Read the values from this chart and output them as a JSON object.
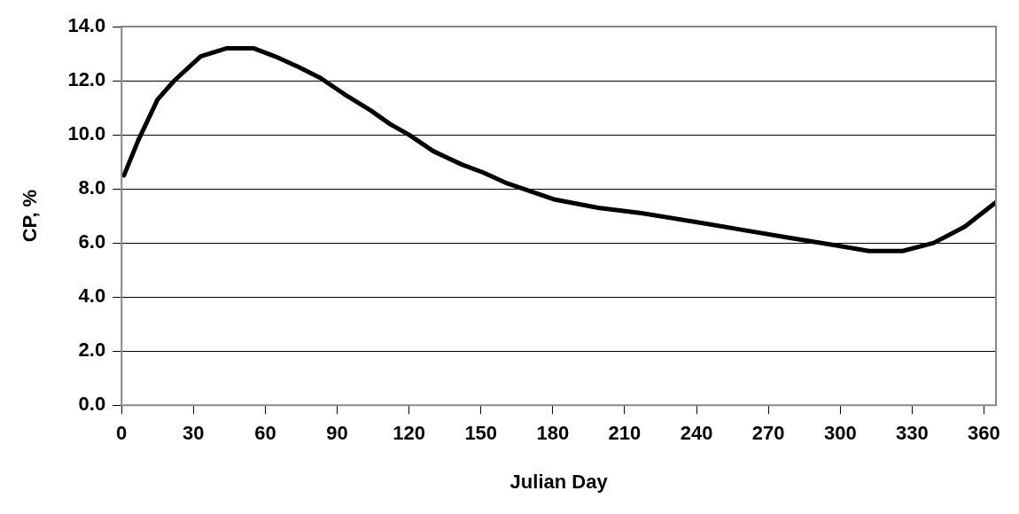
{
  "chart_data": {
    "type": "line",
    "xlabel": "Julian Day",
    "ylabel": "CP, %",
    "x": [
      1,
      7,
      15,
      22,
      33,
      44,
      55,
      64,
      74,
      83,
      93,
      104,
      112,
      120,
      130,
      142,
      151,
      161,
      171,
      181,
      199,
      217,
      238,
      258,
      278,
      299,
      312,
      326,
      339,
      352,
      365
    ],
    "series": [
      {
        "color": "#000000",
        "values": [
          8.5,
          9.8,
          11.3,
          12.0,
          12.9,
          13.2,
          13.2,
          12.9,
          12.5,
          12.1,
          11.5,
          10.9,
          10.4,
          10.0,
          9.4,
          8.9,
          8.6,
          8.2,
          7.9,
          7.6,
          7.3,
          7.1,
          6.8,
          6.5,
          6.2,
          5.9,
          5.7,
          5.7,
          6.0,
          6.6,
          7.5
        ]
      }
    ],
    "xlim": [
      0,
      365
    ],
    "xticks": [
      0,
      30,
      60,
      90,
      120,
      150,
      180,
      210,
      240,
      270,
      300,
      330,
      360
    ],
    "ylim": [
      0,
      14
    ],
    "yticks": [
      {
        "value": 0,
        "label": "0.0"
      },
      {
        "value": 2,
        "label": "2.0"
      },
      {
        "value": 4,
        "label": "4.0"
      },
      {
        "value": 6,
        "label": "6.0"
      },
      {
        "value": 8,
        "label": "8.0"
      },
      {
        "value": 10,
        "label": "10.0"
      },
      {
        "value": 12,
        "label": "12.0"
      },
      {
        "value": 14,
        "label": "14.0"
      }
    ],
    "grid": "y",
    "legend": false,
    "marker": "none",
    "line_style": "solid"
  }
}
